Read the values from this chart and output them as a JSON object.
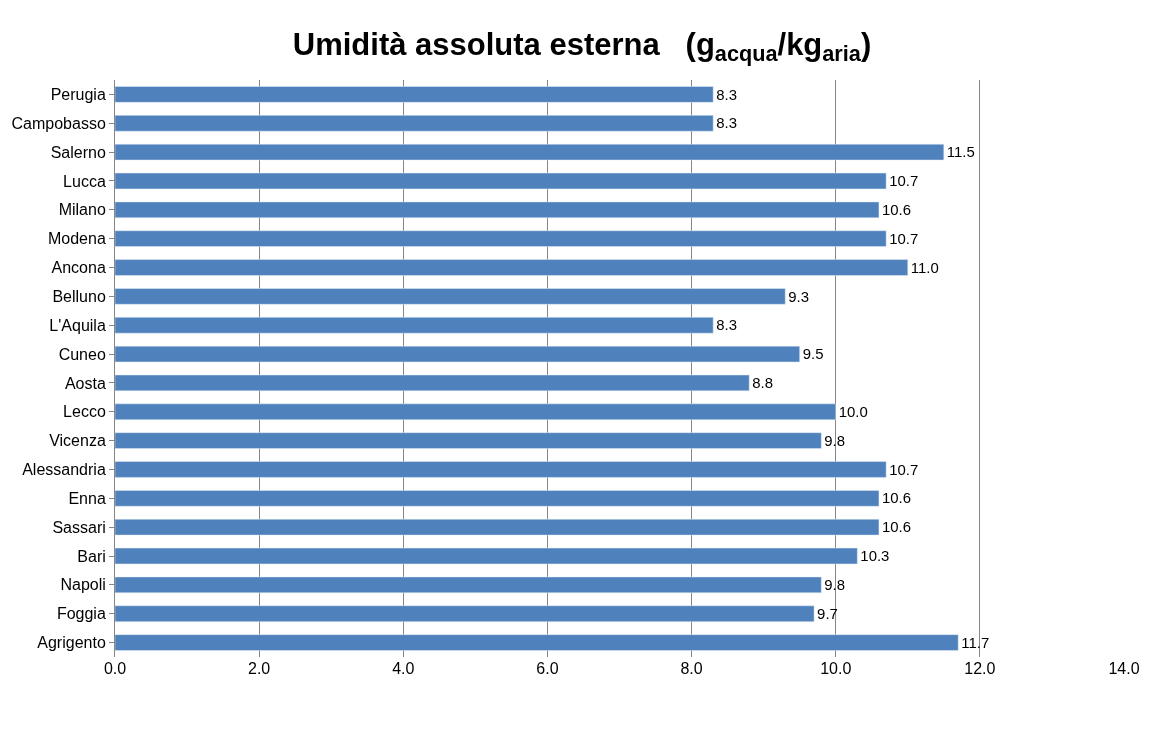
{
  "chart_data": {
    "type": "bar",
    "orientation": "horizontal",
    "title": "Umidità assoluta esterna   (g$_{acqua}$/kg$_{aria}$)",
    "categories": [
      "Perugia",
      "Campobasso",
      "Salerno",
      "Lucca",
      "Milano",
      "Modena",
      "Ancona",
      "Belluno",
      "L'Aquila",
      "Cuneo",
      "Aosta",
      "Lecco",
      "Vicenza",
      "Alessandria",
      "Enna",
      "Sassari",
      "Bari",
      "Napoli",
      "Foggia",
      "Agrigento"
    ],
    "values": [
      8.3,
      8.3,
      11.5,
      10.7,
      10.6,
      10.7,
      11.0,
      9.3,
      8.3,
      9.5,
      8.8,
      10.0,
      9.8,
      10.7,
      10.6,
      10.6,
      10.3,
      9.8,
      9.7,
      11.7
    ],
    "color": "#4f81bd",
    "xlim": [
      0,
      14
    ],
    "xticks": [
      {
        "value": 0,
        "label": "0.0"
      },
      {
        "value": 2,
        "label": "2.0"
      },
      {
        "value": 4,
        "label": "4.0"
      },
      {
        "value": 6,
        "label": "6.0"
      },
      {
        "value": 8,
        "label": "8.0"
      },
      {
        "value": 10,
        "label": "10.0"
      },
      {
        "value": 12,
        "label": "12.0"
      },
      {
        "value": 14,
        "label": "14.0"
      }
    ],
    "grid": "x",
    "value_labels": [
      "8.3",
      "8.3",
      "11.5",
      "10.7",
      "10.6",
      "10.7",
      "11.0",
      "9.3",
      "8.3",
      "9.5",
      "8.8",
      "10.0",
      "9.8",
      "10.7",
      "10.6",
      "10.6",
      "10.3",
      "9.8",
      "9.7",
      "11.7"
    ]
  }
}
